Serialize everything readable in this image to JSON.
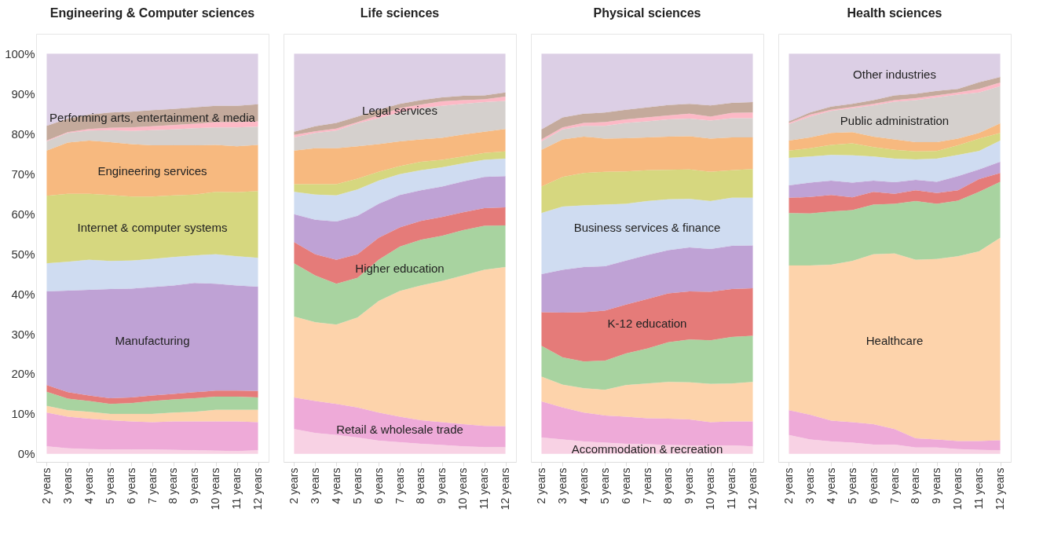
{
  "chart_data": [
    {
      "type": "area",
      "stacked": true,
      "title": "Engineering & Computer sciences",
      "categories": [
        "2 years",
        "3 years",
        "4 years",
        "5 years",
        "6 years",
        "7 years",
        "8 years",
        "9 years",
        "10 years",
        "11 years",
        "12 years"
      ],
      "ylim": [
        -2,
        105
      ],
      "yticks": [
        {
          "value": 0,
          "label": "0%"
        },
        {
          "value": 10,
          "label": "10%"
        },
        {
          "value": 20,
          "label": "20%"
        },
        {
          "value": 30,
          "label": "30%"
        },
        {
          "value": 40,
          "label": "40%"
        },
        {
          "value": 50,
          "label": "50%"
        },
        {
          "value": 60,
          "label": "60%"
        },
        {
          "value": 70,
          "label": "70%"
        },
        {
          "value": 80,
          "label": "80%"
        },
        {
          "value": 90,
          "label": "90%"
        },
        {
          "value": 100,
          "label": "100%"
        }
      ],
      "series": [
        {
          "color": "#f8d2e4",
          "values": [
            1.9,
            1.4,
            1.2,
            1.1,
            1.1,
            1.1,
            1.0,
            0.9,
            0.8,
            0.7,
            0.9
          ]
        },
        {
          "color": "#eeaad8",
          "values": [
            8.4,
            7.9,
            7.6,
            7.3,
            7.0,
            6.8,
            7.1,
            7.2,
            7.3,
            7.4,
            7.0
          ]
        },
        {
          "color": "#fdd3ab",
          "values": [
            1.7,
            1.6,
            1.7,
            1.6,
            1.9,
            2.1,
            2.2,
            2.4,
            2.9,
            2.9,
            3.1
          ]
        },
        {
          "color": "#a8d3a0",
          "values": [
            3.5,
            2.9,
            2.7,
            2.5,
            2.7,
            3.2,
            3.3,
            3.4,
            3.3,
            3.3,
            3.1
          ]
        },
        {
          "color": "#e57b79",
          "values": [
            1.7,
            1.6,
            1.4,
            1.4,
            1.4,
            1.4,
            1.4,
            1.5,
            1.5,
            1.5,
            1.6
          ]
        },
        {
          "name": "Manufacturing",
          "color": "#bfa2d5",
          "values": [
            23.4,
            25.4,
            26.4,
            27.3,
            27.2,
            27.1,
            27.1,
            27.3,
            26.7,
            26.3,
            26.1
          ]
        },
        {
          "color": "#cfdcf1",
          "values": [
            7.0,
            7.2,
            7.5,
            7.0,
            7.0,
            7.0,
            7.1,
            6.9,
            7.4,
            7.3,
            7.2
          ]
        },
        {
          "name": "Internet & computer systems",
          "color": "#d6d77f",
          "values": [
            16.9,
            17.0,
            16.5,
            16.5,
            16.0,
            15.6,
            15.4,
            15.2,
            15.6,
            16.0,
            16.7
          ]
        },
        {
          "name": "Engineering services",
          "color": "#f7b97f",
          "values": [
            11.3,
            12.8,
            13.3,
            13.2,
            13.1,
            12.8,
            12.5,
            12.3,
            11.7,
            11.5,
            11.5
          ]
        },
        {
          "color": "#d5d0cd",
          "values": [
            2.3,
            2.4,
            2.5,
            3.0,
            3.3,
            3.8,
            4.0,
            4.3,
            4.4,
            4.7,
            4.6
          ]
        },
        {
          "color": "#fdb9c6",
          "values": [
            0.2,
            0.2,
            0.4,
            0.6,
            0.9,
            1.0,
            1.1,
            1.1,
            1.3,
            1.3,
            1.3
          ]
        },
        {
          "name": "Performing arts, entertainment & media",
          "color": "#c4aa9c",
          "values": [
            3.7,
            3.4,
            3.6,
            3.8,
            3.9,
            4.0,
            4.0,
            4.1,
            4.1,
            4.1,
            4.3
          ]
        },
        {
          "color": "#dccfe5",
          "values": [
            18.0,
            16.2,
            15.2,
            14.7,
            14.5,
            14.1,
            13.8,
            13.4,
            13.0,
            13.0,
            12.6
          ]
        }
      ]
    },
    {
      "type": "area",
      "stacked": true,
      "title": "Life sciences",
      "tick_labels": "x",
      "categories": [
        "2 years",
        "3 years",
        "4 years",
        "5 years",
        "6 years",
        "7 years",
        "8 years",
        "9 years",
        "10 years",
        "11 years",
        "12 years"
      ],
      "ylim": [
        -2,
        105
      ],
      "series": [
        {
          "color": "#f8d2e4",
          "values": [
            6.2,
            5.2,
            4.7,
            4.1,
            3.3,
            2.9,
            2.5,
            2.2,
            1.9,
            1.7,
            1.7
          ]
        },
        {
          "name": "Retail & wholesale trade",
          "color": "#eeaad8",
          "values": [
            7.9,
            8.0,
            7.8,
            7.5,
            7.0,
            6.4,
            5.9,
            5.7,
            5.5,
            5.3,
            5.2
          ]
        },
        {
          "color": "#fdd3ab",
          "values": [
            20.2,
            19.7,
            19.8,
            22.5,
            27.9,
            31.4,
            33.7,
            35.3,
            37.2,
            39.0,
            39.8
          ]
        },
        {
          "name": "Higher education",
          "color": "#a8d3a0",
          "values": [
            13.3,
            11.7,
            10.2,
            9.9,
            10.3,
            11.1,
            11.4,
            11.3,
            11.3,
            11.0,
            10.4
          ]
        },
        {
          "color": "#e57b79",
          "values": [
            5.3,
            5.3,
            6.0,
            5.9,
            5.5,
            4.8,
            4.7,
            4.7,
            4.5,
            4.4,
            4.5
          ]
        },
        {
          "color": "#bfa2d5",
          "values": [
            7.0,
            8.6,
            9.6,
            9.6,
            8.5,
            8.1,
            7.7,
            7.6,
            7.7,
            7.8,
            7.8
          ]
        },
        {
          "color": "#cfdcf1",
          "values": [
            5.6,
            6.3,
            6.5,
            6.6,
            5.8,
            5.2,
            5.0,
            4.8,
            4.5,
            4.3,
            4.4
          ]
        },
        {
          "color": "#d6d77f",
          "values": [
            1.9,
            2.6,
            2.8,
            2.7,
            2.2,
            2.0,
            2.1,
            1.9,
            1.7,
            1.7,
            1.8
          ]
        },
        {
          "color": "#f7b97f",
          "values": [
            8.4,
            9.0,
            9.0,
            8.1,
            6.9,
            6.2,
            5.6,
            5.5,
            5.5,
            5.3,
            5.6
          ]
        },
        {
          "color": "#d5d0cd",
          "values": [
            3.3,
            3.8,
            4.4,
            5.7,
            6.5,
            7.2,
            7.8,
            8.0,
            7.7,
            7.4,
            7.0
          ]
        },
        {
          "name": "Legal services",
          "color": "#fdb9c6",
          "values": [
            0.6,
            0.4,
            0.5,
            0.3,
            0.7,
            1.1,
            0.9,
            1.1,
            0.9,
            0.7,
            1.1
          ]
        },
        {
          "color": "#c4aa9c",
          "values": [
            0.8,
            1.3,
            1.4,
            1.4,
            1.4,
            1.1,
            1.1,
            1.0,
            1.1,
            1.0,
            1.0
          ]
        },
        {
          "color": "#dccfe5",
          "values": [
            19.5,
            18.1,
            17.3,
            15.7,
            14.0,
            12.5,
            11.6,
            10.9,
            10.5,
            10.4,
            9.7
          ]
        }
      ]
    },
    {
      "type": "area",
      "stacked": true,
      "title": "Physical sciences",
      "tick_labels": "x",
      "categories": [
        "2 years",
        "3 years",
        "4 years",
        "5 years",
        "6 years",
        "7 years",
        "8 years",
        "9 years",
        "10 years",
        "11 years",
        "12 years"
      ],
      "ylim": [
        -2,
        105
      ],
      "series": [
        {
          "name": "Accommodation & recreation",
          "color": "#f8d2e4",
          "values": [
            4.1,
            3.6,
            3.1,
            2.8,
            2.5,
            2.4,
            2.2,
            2.1,
            2.1,
            2.1,
            1.9
          ]
        },
        {
          "color": "#eeaad8",
          "values": [
            9.0,
            8.0,
            7.2,
            6.8,
            6.8,
            6.5,
            6.6,
            6.5,
            5.8,
            6.0,
            6.2
          ]
        },
        {
          "color": "#fdd3ab",
          "values": [
            6.2,
            5.7,
            6.1,
            6.4,
            7.9,
            8.7,
            9.2,
            9.3,
            9.6,
            9.5,
            9.9
          ]
        },
        {
          "color": "#a8d3a0",
          "values": [
            7.7,
            6.8,
            6.7,
            7.3,
            7.9,
            8.7,
            9.9,
            10.7,
            10.9,
            11.6,
            11.5
          ]
        },
        {
          "name": "K-12 education",
          "color": "#e57b79",
          "values": [
            8.4,
            11.2,
            12.3,
            12.5,
            12.2,
            12.4,
            12.2,
            12.0,
            12.1,
            12.0,
            11.9
          ]
        },
        {
          "color": "#bfa2d5",
          "values": [
            9.5,
            10.7,
            11.3,
            11.1,
            11.0,
            11.0,
            10.8,
            11.0,
            10.7,
            10.8,
            10.7
          ]
        },
        {
          "name": "Business services & finance",
          "color": "#cfdcf1",
          "values": [
            15.3,
            15.8,
            15.4,
            15.4,
            14.2,
            13.5,
            12.7,
            12.1,
            12.0,
            12.0,
            11.9
          ]
        },
        {
          "color": "#d6d77f",
          "values": [
            6.6,
            7.4,
            8.1,
            8.2,
            8.1,
            7.7,
            7.4,
            7.4,
            7.3,
            6.9,
            7.2
          ]
        },
        {
          "color": "#f7b97f",
          "values": [
            9.2,
            9.4,
            9.1,
            8.3,
            8.3,
            8.2,
            8.3,
            8.3,
            8.3,
            8.2,
            7.9
          ]
        },
        {
          "color": "#d5d0cd",
          "values": [
            2.1,
            2.5,
            2.7,
            3.2,
            3.8,
            4.0,
            4.3,
            4.4,
            4.5,
            4.8,
            4.8
          ]
        },
        {
          "color": "#fdb9c6",
          "values": [
            0.5,
            0.5,
            0.7,
            0.9,
            0.9,
            1.0,
            1.0,
            1.2,
            1.0,
            1.3,
            1.4
          ]
        },
        {
          "color": "#c4aa9c",
          "values": [
            2.5,
            2.5,
            2.3,
            2.4,
            2.4,
            2.5,
            2.6,
            2.5,
            2.8,
            2.5,
            2.6
          ]
        },
        {
          "color": "#dccfe5",
          "values": [
            18.9,
            15.9,
            15.0,
            14.7,
            14.0,
            13.4,
            12.8,
            12.5,
            12.9,
            12.3,
            12.1
          ]
        }
      ]
    },
    {
      "type": "area",
      "stacked": true,
      "title": "Health sciences",
      "tick_labels": "x",
      "categories": [
        "2 years",
        "3 years",
        "4 years",
        "5 years",
        "6 years",
        "7 years",
        "8 years",
        "9 years",
        "10 years",
        "11 years",
        "12 years"
      ],
      "ylim": [
        -2,
        105
      ],
      "series": [
        {
          "color": "#f8d2e4",
          "values": [
            4.7,
            3.6,
            3.1,
            2.8,
            2.3,
            2.3,
            1.6,
            1.6,
            1.2,
            1.0,
            0.9
          ]
        },
        {
          "color": "#eeaad8",
          "values": [
            6.2,
            6.2,
            5.2,
            5.1,
            5.1,
            3.9,
            2.3,
            2.0,
            2.0,
            2.2,
            2.5
          ]
        },
        {
          "name": "Healthcare",
          "color": "#fdd3ab",
          "values": [
            36.2,
            37.3,
            39.0,
            40.3,
            42.5,
            43.9,
            44.6,
            45.1,
            46.2,
            47.4,
            50.6
          ]
        },
        {
          "color": "#a8d3a0",
          "values": [
            13.1,
            13.0,
            13.3,
            12.7,
            12.4,
            12.4,
            14.7,
            13.8,
            13.9,
            14.9,
            14.0
          ]
        },
        {
          "color": "#e57b79",
          "values": [
            3.8,
            4.1,
            4.1,
            3.2,
            3.2,
            2.5,
            2.7,
            2.7,
            2.6,
            3.2,
            2.2
          ]
        },
        {
          "color": "#bfa2d5",
          "values": [
            3.1,
            3.6,
            3.6,
            3.7,
            2.8,
            2.9,
            2.6,
            2.8,
            3.5,
            2.4,
            2.8
          ]
        },
        {
          "color": "#cfdcf1",
          "values": [
            6.9,
            6.5,
            6.4,
            6.8,
            6.0,
            5.9,
            5.1,
            5.8,
            5.3,
            4.6,
            5.3
          ]
        },
        {
          "color": "#d6d77f",
          "values": [
            1.8,
            2.1,
            2.5,
            3.0,
            2.4,
            2.2,
            2.0,
            1.9,
            2.4,
            3.1,
            1.9
          ]
        },
        {
          "color": "#f7b97f",
          "values": [
            2.5,
            2.7,
            3.0,
            2.8,
            2.6,
            2.6,
            2.3,
            2.2,
            1.7,
            1.4,
            2.4
          ]
        },
        {
          "name": "Public administration",
          "color": "#d5d0cd",
          "values": [
            4.1,
            5.2,
            5.5,
            6.0,
            7.8,
            9.4,
            10.5,
            11.2,
            11.0,
            10.1,
            9.3
          ]
        },
        {
          "color": "#fdb9c6",
          "values": [
            0.3,
            0.5,
            0.3,
            0.3,
            0.4,
            0.4,
            0.5,
            0.5,
            0.5,
            0.9,
            0.9
          ]
        },
        {
          "color": "#c4aa9c",
          "values": [
            0.4,
            0.5,
            0.8,
            0.8,
            0.9,
            1.2,
            1.1,
            1.1,
            0.9,
            1.7,
            1.4
          ]
        },
        {
          "name": "Other industries",
          "color": "#dccfe5",
          "values": [
            16.9,
            14.7,
            13.2,
            12.5,
            11.6,
            10.4,
            10.0,
            9.3,
            8.8,
            7.1,
            5.8
          ]
        }
      ]
    }
  ]
}
